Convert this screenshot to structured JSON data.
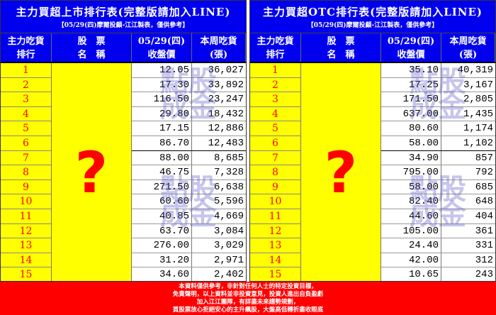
{
  "watermark": "點股成金",
  "question_mark": "?",
  "headers": {
    "rank": "主力吃貨\n排行",
    "name": "股　票\n名　稱",
    "price": "05/29(四)\n收盤價",
    "volume": "本周吃貨\n(張)"
  },
  "left": {
    "title": "主力買超上市排行表(完整版請加入LINE)",
    "subtitle": "【05/29(四)摩爾投顧-江江製表，僅供參考】",
    "rows": [
      [
        "1",
        "12.05",
        "36,027"
      ],
      [
        "2",
        "17.30",
        "33,892"
      ],
      [
        "3",
        "116.50",
        "23,247"
      ],
      [
        "4",
        "29.80",
        "18,432"
      ],
      [
        "5",
        "17.15",
        "12,886"
      ],
      [
        "6",
        "86.70",
        "12,483"
      ],
      [
        "7",
        "88.00",
        "8,685"
      ],
      [
        "8",
        "46.75",
        "7,328"
      ],
      [
        "9",
        "271.50",
        "6,638"
      ],
      [
        "10",
        "60.60",
        "5,596"
      ],
      [
        "11",
        "40.85",
        "4,669"
      ],
      [
        "12",
        "63.70",
        "3,084"
      ],
      [
        "13",
        "276.00",
        "3,029"
      ],
      [
        "14",
        "31.20",
        "2,971"
      ],
      [
        "15",
        "34.60",
        "2,402"
      ]
    ]
  },
  "right": {
    "title": "主力買超OTC排行表(完整版請加入LINE)",
    "subtitle": "【05/29(四)摩爾投顧-江江製表，僅供參考】",
    "rows": [
      [
        "1",
        "35.10",
        "40,319"
      ],
      [
        "2",
        "17.25",
        "3,167"
      ],
      [
        "3",
        "171.50",
        "2,805"
      ],
      [
        "4",
        "637.00",
        "1,435"
      ],
      [
        "5",
        "80.60",
        "1,174"
      ],
      [
        "6",
        "58.00",
        "1,102"
      ],
      [
        "7",
        "34.90",
        "857"
      ],
      [
        "8",
        "795.00",
        "792"
      ],
      [
        "9",
        "58.00",
        "685"
      ],
      [
        "10",
        "82.40",
        "648"
      ],
      [
        "11",
        "44.60",
        "404"
      ],
      [
        "12",
        "105.00",
        "361"
      ],
      [
        "13",
        "24.40",
        "331"
      ],
      [
        "14",
        "42.00",
        "312"
      ],
      [
        "15",
        "10.65",
        "243"
      ]
    ]
  },
  "footer": [
    "本資料僅供參考，非針對任何人士的特定投資目標，",
    "免責聲明，以上資料並非投資意見，投資人進出自負盈虧",
    "加入江江團隊，有詳盡未來趨勢規劃，",
    "買股票放心拒絕安心的主升飆股，大盤高低轉折盡收眼底"
  ],
  "colors": {
    "header_bg": "#0000ee",
    "rank_bg": "#ffff00",
    "rank_text": "#ff0000",
    "footer_bg": "#ff0000"
  }
}
